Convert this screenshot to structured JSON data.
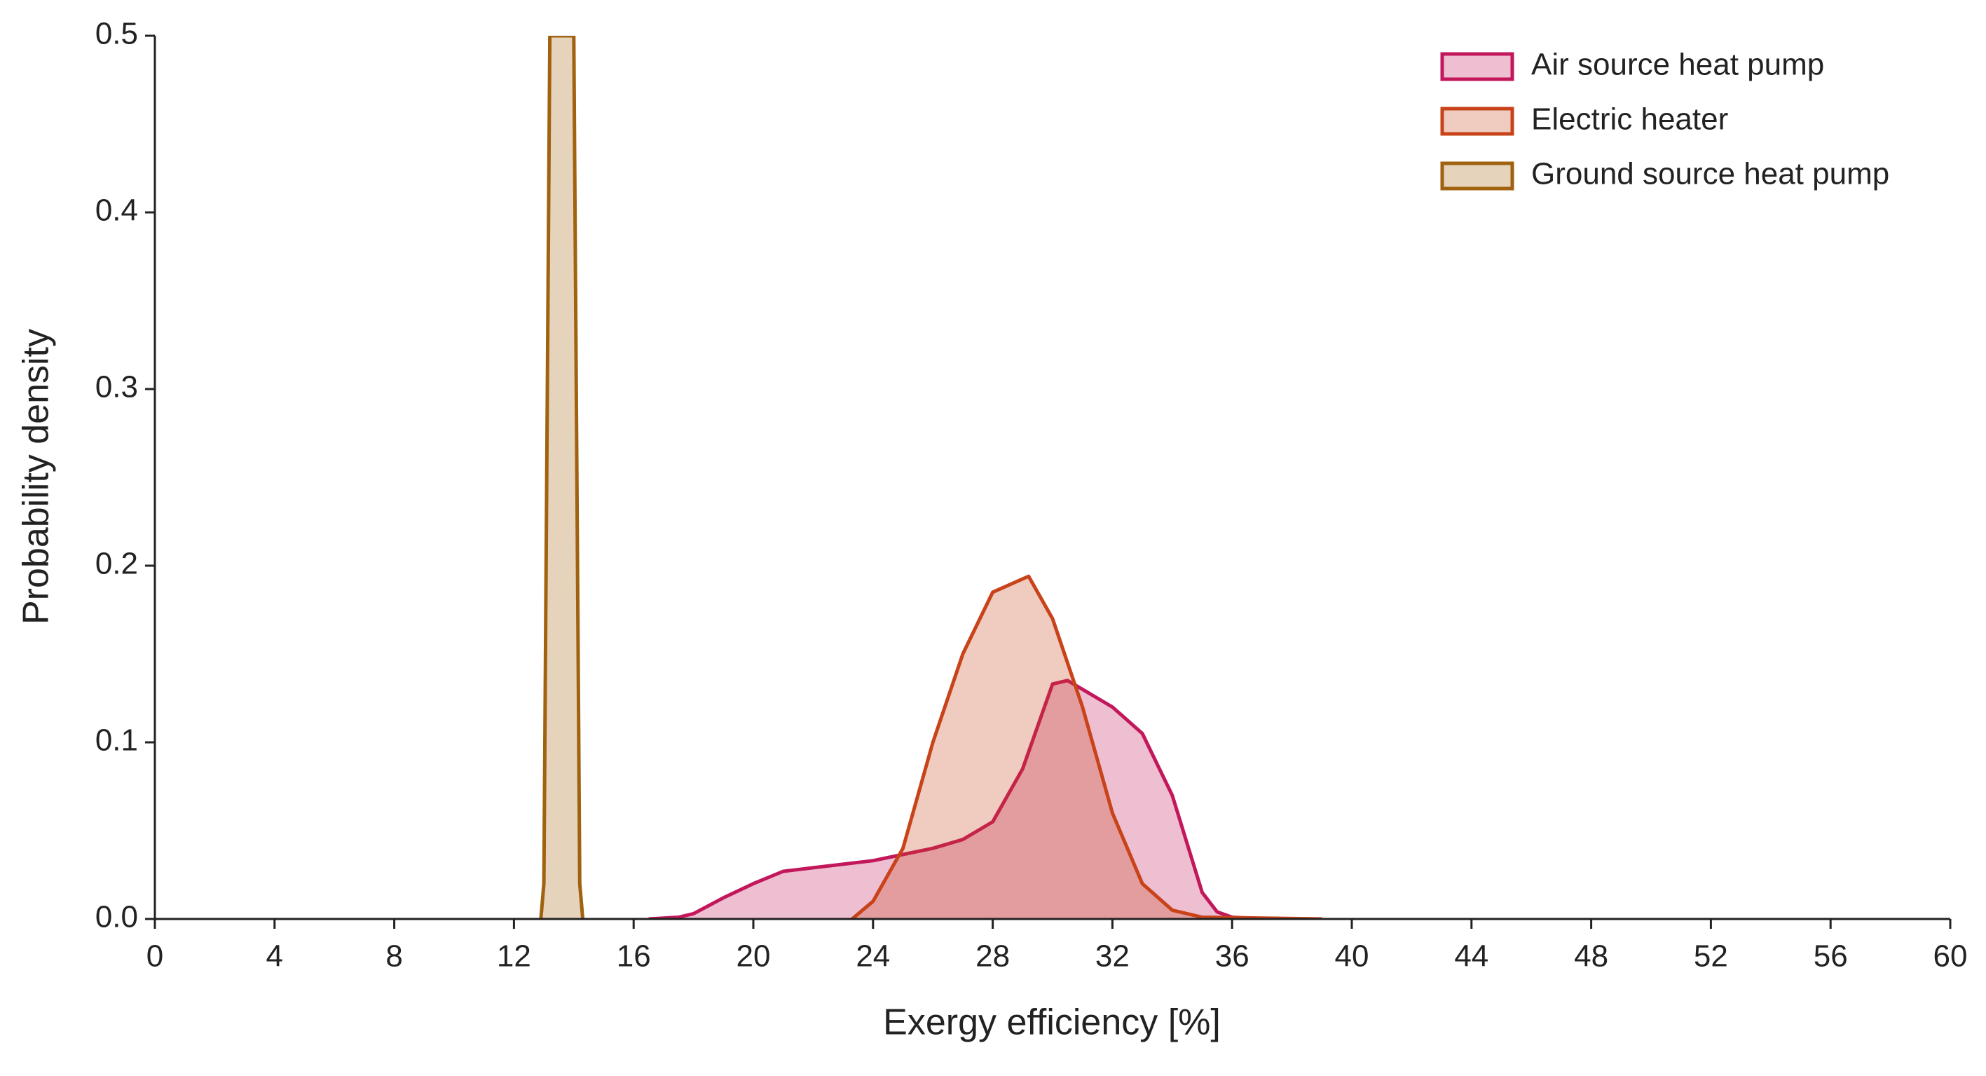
{
  "chart_data": {
    "type": "area",
    "xlabel": "Exergy efficiency [%]",
    "ylabel": "Probability density",
    "xlim": [
      0,
      60
    ],
    "ylim": [
      0,
      0.5
    ],
    "xticks": [
      0,
      4,
      8,
      12,
      16,
      20,
      24,
      28,
      32,
      36,
      40,
      44,
      48,
      52,
      56,
      60
    ],
    "yticks": [
      {
        "value": 0,
        "label": "0.0"
      },
      {
        "value": 0.1,
        "label": "0.1"
      },
      {
        "value": 0.2,
        "label": "0.2"
      },
      {
        "value": 0.3,
        "label": "0.3"
      },
      {
        "value": 0.4,
        "label": "0.4"
      },
      {
        "value": 0.5,
        "label": "0.5"
      }
    ],
    "legend": "upper right",
    "series": [
      {
        "name": "Air source heat pump",
        "color": "#c2185b",
        "x": [
          16.5,
          17.5,
          18,
          19,
          20,
          21,
          22,
          24,
          26,
          27,
          28,
          29,
          30,
          30.5,
          31,
          32,
          33,
          34,
          35,
          35.5,
          36,
          37
        ],
        "values": [
          0,
          0.001,
          0.003,
          0.012,
          0.02,
          0.027,
          0.029,
          0.033,
          0.04,
          0.045,
          0.055,
          0.085,
          0.133,
          0.135,
          0.13,
          0.12,
          0.105,
          0.07,
          0.015,
          0.004,
          0.001,
          0
        ]
      },
      {
        "name": "Electric heater",
        "color": "#c8431a",
        "x": [
          23.3,
          24,
          25,
          26,
          27,
          28,
          29.2,
          30,
          31,
          32,
          33,
          34,
          35,
          39
        ],
        "values": [
          0,
          0.01,
          0.04,
          0.1,
          0.15,
          0.185,
          0.194,
          0.17,
          0.12,
          0.06,
          0.02,
          0.005,
          0.001,
          0
        ]
      },
      {
        "name": "Ground source heat pump",
        "color": "#a0620f",
        "x": [
          12.9,
          13.0,
          13.2,
          13.4,
          13.6,
          13.8,
          14.0,
          14.2,
          14.3
        ],
        "values": [
          0,
          0.02,
          0.5,
          0.5,
          0.5,
          0.5,
          0.5,
          0.02,
          0
        ]
      }
    ]
  }
}
